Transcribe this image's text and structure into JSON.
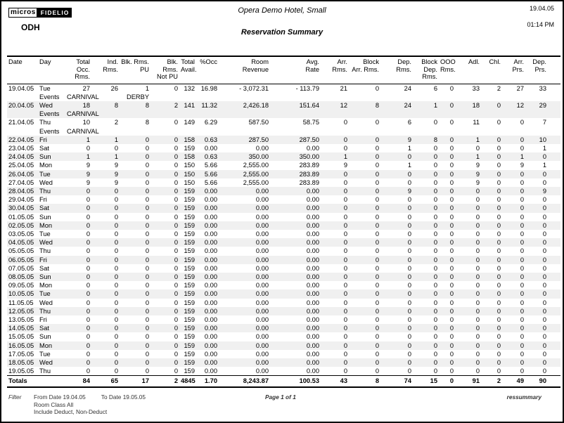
{
  "header": {
    "logo_micros": "micros",
    "logo_fidelio": "FIDELIO",
    "property_code": "ODH",
    "hotel_name": "Opera Demo Hotel, Small",
    "report_title": "Reservation Summary",
    "date": "19.04.05",
    "time": "01:14 PM"
  },
  "table": {
    "columns": [
      "Date",
      "Day",
      "Total Occ.\nRms.",
      "Ind. Rms.",
      "Blk. Rms.\nPU",
      "Blk. Rms.\nNot PU",
      "Total\nAvail.",
      "%Occ",
      "Room\nRevenue",
      "Avg.\nRate",
      "Arr. Rms.",
      "Block\nArr. Rms.",
      "Dep. Rms.",
      "Block\nDep. Rms.",
      "OOO\nRms.",
      "Adl.",
      "Chl.",
      "Arr.\nPrs.",
      "Dep.\nPrs."
    ],
    "events_label": "Events",
    "rows": [
      {
        "date": "19.04.05",
        "day": "Tue",
        "values": [
          "27",
          "26",
          "1",
          "0",
          "132",
          "16.98",
          "- 3,072.31",
          "- 113.79",
          "21",
          "0",
          "24",
          "6",
          "0",
          "33",
          "2",
          "27",
          "33"
        ],
        "events": [
          "CARNIVAL",
          "DERBY"
        ]
      },
      {
        "date": "20.04.05",
        "day": "Wed",
        "values": [
          "18",
          "8",
          "8",
          "2",
          "141",
          "11.32",
          "2,426.18",
          "151.64",
          "12",
          "8",
          "24",
          "1",
          "0",
          "18",
          "0",
          "12",
          "29"
        ],
        "events": [
          "CARNIVAL"
        ]
      },
      {
        "date": "21.04.05",
        "day": "Thu",
        "values": [
          "10",
          "2",
          "8",
          "0",
          "149",
          "6.29",
          "587.50",
          "58.75",
          "0",
          "0",
          "6",
          "0",
          "0",
          "11",
          "0",
          "0",
          "7"
        ],
        "events": [
          "CARNIVAL"
        ]
      },
      {
        "date": "22.04.05",
        "day": "Fri",
        "values": [
          "1",
          "1",
          "0",
          "0",
          "158",
          "0.63",
          "287.50",
          "287.50",
          "0",
          "0",
          "9",
          "8",
          "0",
          "1",
          "0",
          "0",
          "10"
        ]
      },
      {
        "date": "23.04.05",
        "day": "Sat",
        "values": [
          "0",
          "0",
          "0",
          "0",
          "159",
          "0.00",
          "0.00",
          "0.00",
          "0",
          "0",
          "1",
          "0",
          "0",
          "0",
          "0",
          "0",
          "1"
        ]
      },
      {
        "date": "24.04.05",
        "day": "Sun",
        "values": [
          "1",
          "1",
          "0",
          "0",
          "158",
          "0.63",
          "350.00",
          "350.00",
          "1",
          "0",
          "0",
          "0",
          "0",
          "1",
          "0",
          "1",
          "0"
        ]
      },
      {
        "date": "25.04.05",
        "day": "Mon",
        "values": [
          "9",
          "9",
          "0",
          "0",
          "150",
          "5.66",
          "2,555.00",
          "283.89",
          "9",
          "0",
          "1",
          "0",
          "0",
          "9",
          "0",
          "9",
          "1"
        ]
      },
      {
        "date": "26.04.05",
        "day": "Tue",
        "values": [
          "9",
          "9",
          "0",
          "0",
          "150",
          "5.66",
          "2,555.00",
          "283.89",
          "0",
          "0",
          "0",
          "0",
          "0",
          "9",
          "0",
          "0",
          "0"
        ]
      },
      {
        "date": "27.04.05",
        "day": "Wed",
        "values": [
          "9",
          "9",
          "0",
          "0",
          "150",
          "5.66",
          "2,555.00",
          "283.89",
          "0",
          "0",
          "0",
          "0",
          "0",
          "9",
          "0",
          "0",
          "0"
        ]
      },
      {
        "date": "28.04.05",
        "day": "Thu",
        "values": [
          "0",
          "0",
          "0",
          "0",
          "159",
          "0.00",
          "0.00",
          "0.00",
          "0",
          "0",
          "9",
          "0",
          "0",
          "0",
          "0",
          "0",
          "9"
        ]
      },
      {
        "date": "29.04.05",
        "day": "Fri",
        "values": [
          "0",
          "0",
          "0",
          "0",
          "159",
          "0.00",
          "0.00",
          "0.00",
          "0",
          "0",
          "0",
          "0",
          "0",
          "0",
          "0",
          "0",
          "0"
        ]
      },
      {
        "date": "30.04.05",
        "day": "Sat",
        "values": [
          "0",
          "0",
          "0",
          "0",
          "159",
          "0.00",
          "0.00",
          "0.00",
          "0",
          "0",
          "0",
          "0",
          "0",
          "0",
          "0",
          "0",
          "0"
        ]
      },
      {
        "date": "01.05.05",
        "day": "Sun",
        "values": [
          "0",
          "0",
          "0",
          "0",
          "159",
          "0.00",
          "0.00",
          "0.00",
          "0",
          "0",
          "0",
          "0",
          "0",
          "0",
          "0",
          "0",
          "0"
        ]
      },
      {
        "date": "02.05.05",
        "day": "Mon",
        "values": [
          "0",
          "0",
          "0",
          "0",
          "159",
          "0.00",
          "0.00",
          "0.00",
          "0",
          "0",
          "0",
          "0",
          "0",
          "0",
          "0",
          "0",
          "0"
        ]
      },
      {
        "date": "03.05.05",
        "day": "Tue",
        "values": [
          "0",
          "0",
          "0",
          "0",
          "159",
          "0.00",
          "0.00",
          "0.00",
          "0",
          "0",
          "0",
          "0",
          "0",
          "0",
          "0",
          "0",
          "0"
        ]
      },
      {
        "date": "04.05.05",
        "day": "Wed",
        "values": [
          "0",
          "0",
          "0",
          "0",
          "159",
          "0.00",
          "0.00",
          "0.00",
          "0",
          "0",
          "0",
          "0",
          "0",
          "0",
          "0",
          "0",
          "0"
        ]
      },
      {
        "date": "05.05.05",
        "day": "Thu",
        "values": [
          "0",
          "0",
          "0",
          "0",
          "159",
          "0.00",
          "0.00",
          "0.00",
          "0",
          "0",
          "0",
          "0",
          "0",
          "0",
          "0",
          "0",
          "0"
        ]
      },
      {
        "date": "06.05.05",
        "day": "Fri",
        "values": [
          "0",
          "0",
          "0",
          "0",
          "159",
          "0.00",
          "0.00",
          "0.00",
          "0",
          "0",
          "0",
          "0",
          "0",
          "0",
          "0",
          "0",
          "0"
        ]
      },
      {
        "date": "07.05.05",
        "day": "Sat",
        "values": [
          "0",
          "0",
          "0",
          "0",
          "159",
          "0.00",
          "0.00",
          "0.00",
          "0",
          "0",
          "0",
          "0",
          "0",
          "0",
          "0",
          "0",
          "0"
        ]
      },
      {
        "date": "08.05.05",
        "day": "Sun",
        "values": [
          "0",
          "0",
          "0",
          "0",
          "159",
          "0.00",
          "0.00",
          "0.00",
          "0",
          "0",
          "0",
          "0",
          "0",
          "0",
          "0",
          "0",
          "0"
        ]
      },
      {
        "date": "09.05.05",
        "day": "Mon",
        "values": [
          "0",
          "0",
          "0",
          "0",
          "159",
          "0.00",
          "0.00",
          "0.00",
          "0",
          "0",
          "0",
          "0",
          "0",
          "0",
          "0",
          "0",
          "0"
        ]
      },
      {
        "date": "10.05.05",
        "day": "Tue",
        "values": [
          "0",
          "0",
          "0",
          "0",
          "159",
          "0.00",
          "0.00",
          "0.00",
          "0",
          "0",
          "0",
          "0",
          "0",
          "0",
          "0",
          "0",
          "0"
        ]
      },
      {
        "date": "11.05.05",
        "day": "Wed",
        "values": [
          "0",
          "0",
          "0",
          "0",
          "159",
          "0.00",
          "0.00",
          "0.00",
          "0",
          "0",
          "0",
          "0",
          "0",
          "0",
          "0",
          "0",
          "0"
        ]
      },
      {
        "date": "12.05.05",
        "day": "Thu",
        "values": [
          "0",
          "0",
          "0",
          "0",
          "159",
          "0.00",
          "0.00",
          "0.00",
          "0",
          "0",
          "0",
          "0",
          "0",
          "0",
          "0",
          "0",
          "0"
        ]
      },
      {
        "date": "13.05.05",
        "day": "Fri",
        "values": [
          "0",
          "0",
          "0",
          "0",
          "159",
          "0.00",
          "0.00",
          "0.00",
          "0",
          "0",
          "0",
          "0",
          "0",
          "0",
          "0",
          "0",
          "0"
        ]
      },
      {
        "date": "14.05.05",
        "day": "Sat",
        "values": [
          "0",
          "0",
          "0",
          "0",
          "159",
          "0.00",
          "0.00",
          "0.00",
          "0",
          "0",
          "0",
          "0",
          "0",
          "0",
          "0",
          "0",
          "0"
        ]
      },
      {
        "date": "15.05.05",
        "day": "Sun",
        "values": [
          "0",
          "0",
          "0",
          "0",
          "159",
          "0.00",
          "0.00",
          "0.00",
          "0",
          "0",
          "0",
          "0",
          "0",
          "0",
          "0",
          "0",
          "0"
        ]
      },
      {
        "date": "16.05.05",
        "day": "Mon",
        "values": [
          "0",
          "0",
          "0",
          "0",
          "159",
          "0.00",
          "0.00",
          "0.00",
          "0",
          "0",
          "0",
          "0",
          "0",
          "0",
          "0",
          "0",
          "0"
        ]
      },
      {
        "date": "17.05.05",
        "day": "Tue",
        "values": [
          "0",
          "0",
          "0",
          "0",
          "159",
          "0.00",
          "0.00",
          "0.00",
          "0",
          "0",
          "0",
          "0",
          "0",
          "0",
          "0",
          "0",
          "0"
        ]
      },
      {
        "date": "18.05.05",
        "day": "Wed",
        "values": [
          "0",
          "0",
          "0",
          "0",
          "159",
          "0.00",
          "0.00",
          "0.00",
          "0",
          "0",
          "0",
          "0",
          "0",
          "0",
          "0",
          "0",
          "0"
        ]
      },
      {
        "date": "19.05.05",
        "day": "Thu",
        "values": [
          "0",
          "0",
          "0",
          "0",
          "159",
          "0.00",
          "0.00",
          "0.00",
          "0",
          "0",
          "0",
          "0",
          "0",
          "0",
          "0",
          "0",
          "0"
        ]
      }
    ],
    "totals": {
      "label": "Totals",
      "values": [
        "84",
        "65",
        "17",
        "2",
        "4845",
        "1.70",
        "8,243.87",
        "100.53",
        "43",
        "8",
        "74",
        "15",
        "0",
        "91",
        "2",
        "49",
        "90"
      ]
    }
  },
  "footer": {
    "filter_label": "Filter",
    "from_date": "From Date 19.04.05",
    "to_date": "To Date 19.05.05",
    "room_class": "Room Class All",
    "include": "Include Deduct, Non-Deduct",
    "page": "Page 1 of 1",
    "report_id": "ressummary"
  },
  "colors": {
    "stripe": "#f0f0f0",
    "rule": "#000000",
    "logo_bg": "#000000"
  }
}
